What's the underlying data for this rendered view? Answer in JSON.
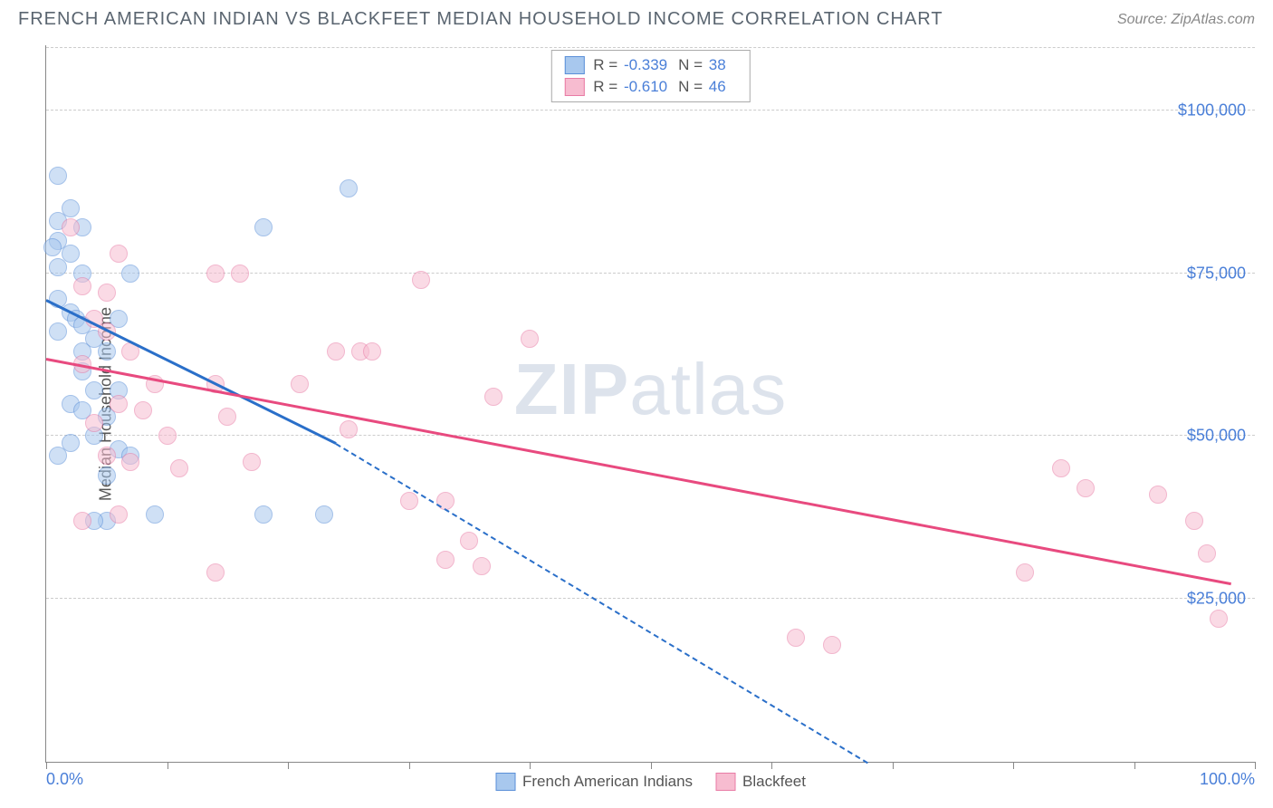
{
  "header": {
    "title": "FRENCH AMERICAN INDIAN VS BLACKFEET MEDIAN HOUSEHOLD INCOME CORRELATION CHART",
    "source": "Source: ZipAtlas.com"
  },
  "chart": {
    "type": "scatter",
    "ylabel": "Median Household Income",
    "x_min": 0,
    "x_max": 100,
    "y_min": 0,
    "y_max": 110000,
    "x_axis_labels": {
      "left": "0.0%",
      "right": "100.0%"
    },
    "y_ticks": [
      {
        "value": 25000,
        "label": "$25,000"
      },
      {
        "value": 50000,
        "label": "$50,000"
      },
      {
        "value": 75000,
        "label": "$75,000"
      },
      {
        "value": 100000,
        "label": "$100,000"
      }
    ],
    "x_ticks": [
      0,
      10,
      20,
      30,
      40,
      50,
      60,
      70,
      80,
      90,
      100
    ],
    "watermark": "ZIPatlas",
    "background_color": "#ffffff",
    "grid_color": "#cccccc",
    "point_radius": 10
  },
  "series": [
    {
      "name": "French American Indians",
      "fill_color": "#a8c8ee",
      "stroke_color": "#5a8fd8",
      "fill_opacity": 0.55,
      "R": "-0.339",
      "N": "38",
      "trend": {
        "x1": 0,
        "y1": 71000,
        "x2_solid": 24,
        "y2_solid": 49000,
        "x2_dash": 68,
        "y2_dash": 0,
        "color": "#2a6fc9"
      },
      "points": [
        [
          1,
          90000
        ],
        [
          2,
          85000
        ],
        [
          1,
          83000
        ],
        [
          3,
          82000
        ],
        [
          1,
          80000
        ],
        [
          0.5,
          79000
        ],
        [
          2,
          78000
        ],
        [
          1,
          76000
        ],
        [
          3,
          75000
        ],
        [
          7,
          75000
        ],
        [
          18,
          82000
        ],
        [
          25,
          88000
        ],
        [
          1,
          71000
        ],
        [
          2,
          69000
        ],
        [
          2.5,
          68000
        ],
        [
          3,
          67000
        ],
        [
          1,
          66000
        ],
        [
          4,
          65000
        ],
        [
          3,
          63000
        ],
        [
          5,
          63000
        ],
        [
          6,
          68000
        ],
        [
          3,
          60000
        ],
        [
          4,
          57000
        ],
        [
          6,
          57000
        ],
        [
          2,
          55000
        ],
        [
          3,
          54000
        ],
        [
          5,
          53000
        ],
        [
          6,
          48000
        ],
        [
          4,
          50000
        ],
        [
          2,
          49000
        ],
        [
          1,
          47000
        ],
        [
          7,
          47000
        ],
        [
          5,
          44000
        ],
        [
          9,
          38000
        ],
        [
          18,
          38000
        ],
        [
          23,
          38000
        ],
        [
          5,
          37000
        ],
        [
          4,
          37000
        ]
      ]
    },
    {
      "name": "Blackfeet",
      "fill_color": "#f7bcd0",
      "stroke_color": "#e87ba5",
      "fill_opacity": 0.55,
      "R": "-0.610",
      "N": "46",
      "trend": {
        "x1": 0,
        "y1": 62000,
        "x2_solid": 98,
        "y2_solid": 27500,
        "x2_dash": 98,
        "y2_dash": 27500,
        "color": "#e84a7f"
      },
      "points": [
        [
          2,
          82000
        ],
        [
          6,
          78000
        ],
        [
          14,
          75000
        ],
        [
          16,
          75000
        ],
        [
          3,
          73000
        ],
        [
          5,
          72000
        ],
        [
          31,
          74000
        ],
        [
          4,
          68000
        ],
        [
          5,
          66000
        ],
        [
          7,
          63000
        ],
        [
          24,
          63000
        ],
        [
          26,
          63000
        ],
        [
          27,
          63000
        ],
        [
          40,
          65000
        ],
        [
          3,
          61000
        ],
        [
          9,
          58000
        ],
        [
          14,
          58000
        ],
        [
          21,
          58000
        ],
        [
          37,
          56000
        ],
        [
          6,
          55000
        ],
        [
          8,
          54000
        ],
        [
          15,
          53000
        ],
        [
          4,
          52000
        ],
        [
          25,
          51000
        ],
        [
          10,
          50000
        ],
        [
          5,
          47000
        ],
        [
          7,
          46000
        ],
        [
          17,
          46000
        ],
        [
          11,
          45000
        ],
        [
          6,
          38000
        ],
        [
          3,
          37000
        ],
        [
          30,
          40000
        ],
        [
          33,
          40000
        ],
        [
          35,
          34000
        ],
        [
          36,
          30000
        ],
        [
          33,
          31000
        ],
        [
          14,
          29000
        ],
        [
          84,
          45000
        ],
        [
          86,
          42000
        ],
        [
          92,
          41000
        ],
        [
          95,
          37000
        ],
        [
          96,
          32000
        ],
        [
          81,
          29000
        ],
        [
          62,
          19000
        ],
        [
          97,
          22000
        ],
        [
          65,
          18000
        ]
      ]
    }
  ],
  "legend_bottom": [
    {
      "label": "French American Indians",
      "series": 0
    },
    {
      "label": "Blackfeet",
      "series": 1
    }
  ]
}
